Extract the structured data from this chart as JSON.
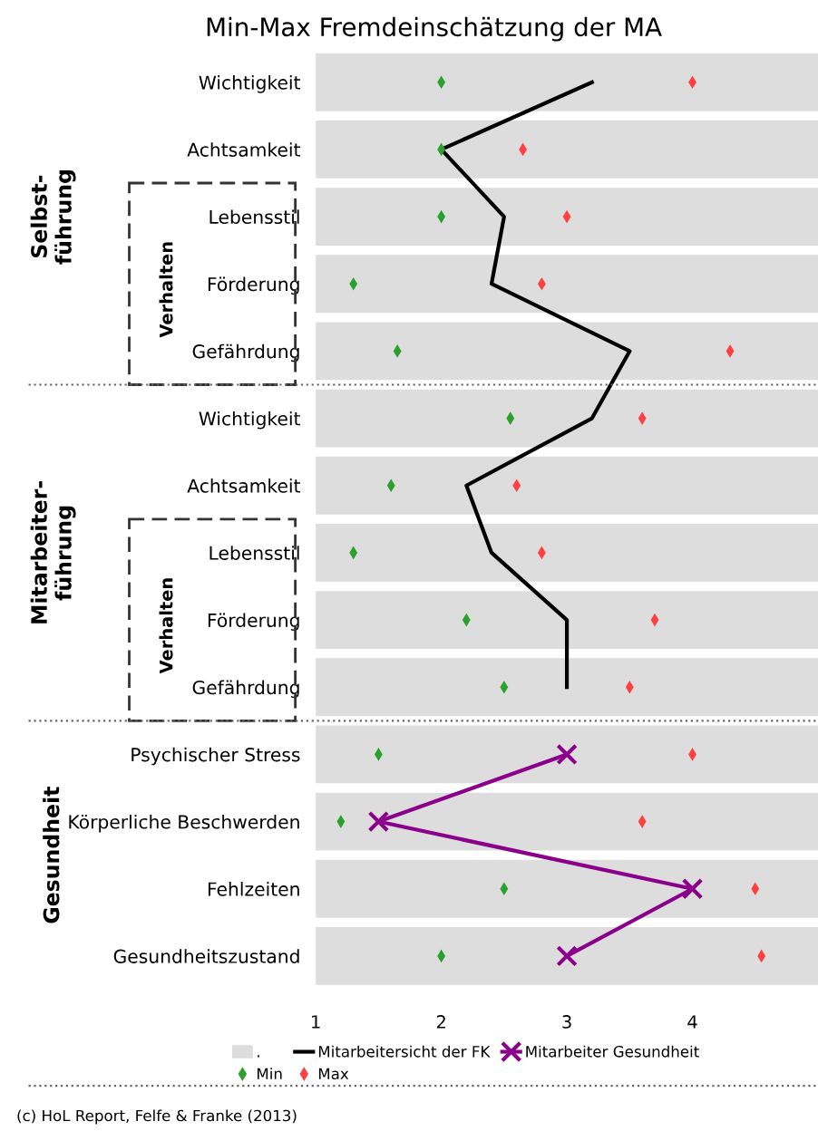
{
  "chart_data": {
    "type": "bar",
    "orientation": "horizontal",
    "title": "Min-Max Fremdeinschätzung der MA",
    "categories": [
      "Wichtigkeit",
      "Achtsamkeit",
      "Lebensstil",
      "Förderung",
      "Gefährdung",
      "Wichtigkeit",
      "Achtsamkeit",
      "Lebensstil",
      "Förderung",
      "Gefährdung",
      "Psychischer Stress",
      "Körperliche Beschwerden",
      "Fehlzeiten",
      "Gesundheitszustand"
    ],
    "series": [
      {
        "name": ".",
        "type": "bar",
        "color": "#dddddd",
        "values": [
          5,
          5,
          5,
          5,
          5,
          5,
          5,
          5,
          5,
          5,
          5,
          5,
          5,
          5
        ]
      },
      {
        "name": "Mitarbeitersicht der FK",
        "type": "line",
        "color": "#000000",
        "values": [
          3.2,
          2.0,
          2.5,
          2.4,
          3.5,
          3.2,
          2.2,
          2.4,
          3.0,
          3.0,
          null,
          null,
          null,
          null
        ]
      },
      {
        "name": "Mitarbeiter Gesundheit",
        "type": "line",
        "color": "#8b008b",
        "marker": "cross",
        "values": [
          null,
          null,
          null,
          null,
          null,
          null,
          null,
          null,
          null,
          null,
          3.0,
          1.5,
          4.0,
          3.0
        ]
      },
      {
        "name": "Min",
        "type": "scatter",
        "color": "#2ca02c",
        "marker": "diamond",
        "values": [
          2.0,
          2.0,
          2.0,
          1.3,
          1.65,
          2.55,
          1.6,
          1.3,
          2.2,
          2.5,
          1.5,
          1.2,
          2.5,
          2.0
        ]
      },
      {
        "name": "Max",
        "type": "scatter",
        "color": "#ff4040",
        "marker": "diamond",
        "values": [
          4.0,
          2.65,
          3.0,
          2.8,
          4.3,
          3.6,
          2.6,
          2.8,
          3.7,
          3.5,
          4.0,
          3.6,
          4.5,
          4.55
        ]
      }
    ],
    "xlim": [
      1,
      5
    ],
    "xticks": [
      1,
      2,
      3,
      4
    ],
    "grid": false,
    "legend": "bottom",
    "annotations": [
      "Selbst-\nführung",
      "Verhalten",
      "Mitarbeiter-\nführung",
      "Verhalten",
      "Gesundheit",
      "(c) HoL Report, Felfe & Franke (2013)"
    ]
  }
}
